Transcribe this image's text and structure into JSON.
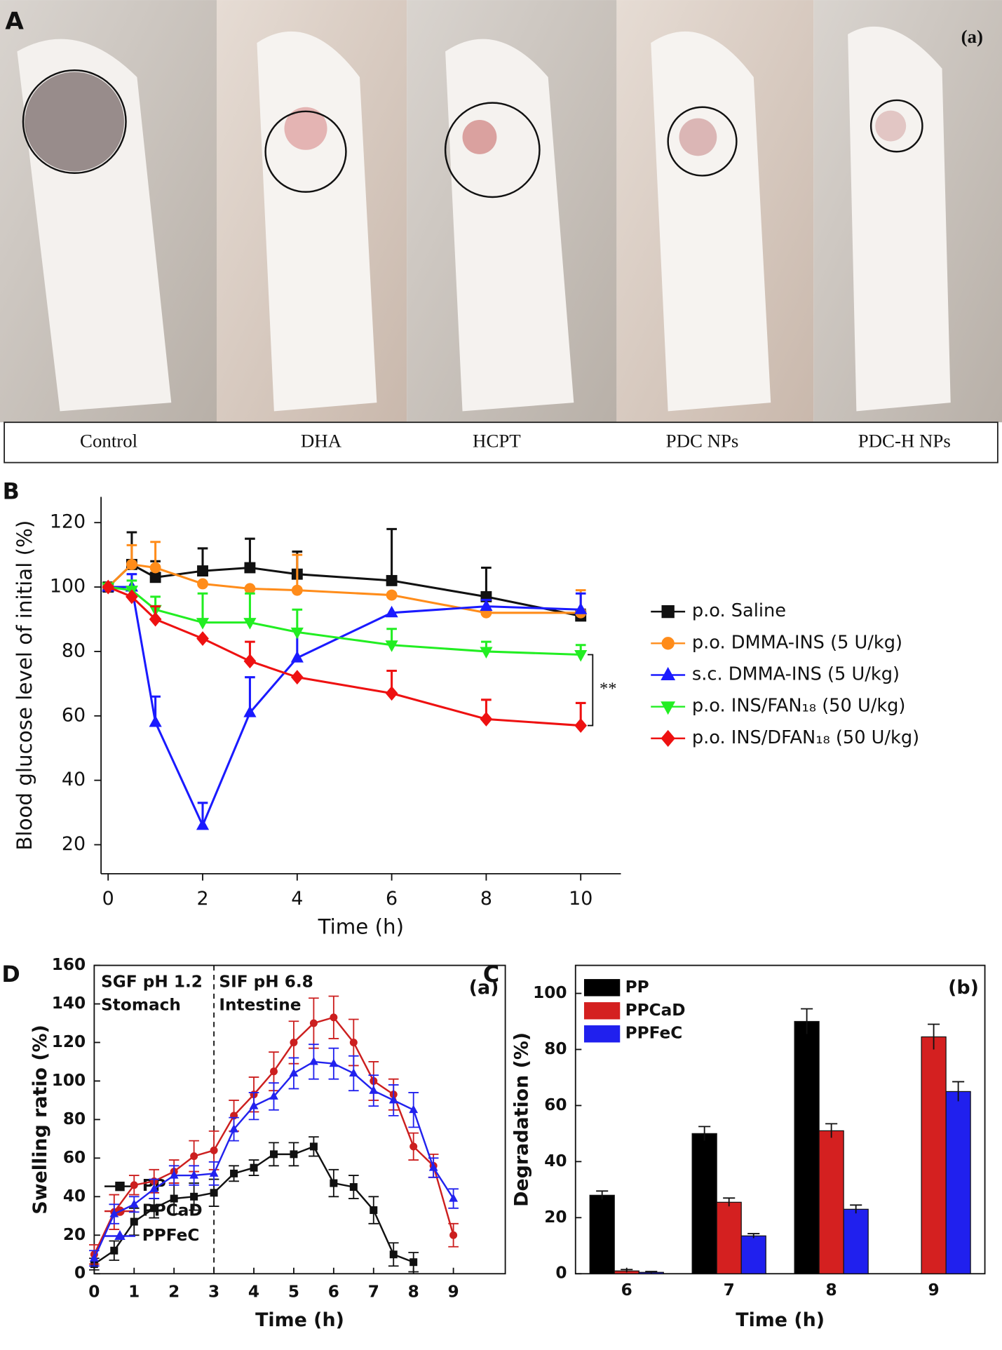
{
  "panel_a": {
    "label": "A",
    "tag": "(a)",
    "captions": [
      "Control",
      "DHA",
      "HCPT",
      "PDC NPs",
      "PDC-H NPs"
    ]
  },
  "chart_data": [
    {
      "type": "line",
      "panel_label": "B",
      "x_label": "Time (h)",
      "y_label": "Blood glucose level of initial (%)",
      "x": [
        0,
        0.5,
        1,
        2,
        3,
        4,
        6,
        8,
        10
      ],
      "xlim": [
        -0.15,
        10.85
      ],
      "xticks": [
        0,
        2,
        4,
        6,
        8,
        10
      ],
      "ylim": [
        11,
        128
      ],
      "yticks": [
        20,
        40,
        60,
        80,
        100,
        120
      ],
      "annotation": "**",
      "series": [
        {
          "name": "p.o. Saline",
          "color": "#111111",
          "marker": "square",
          "values": [
            100,
            107,
            103,
            105,
            106,
            104,
            102,
            97,
            91
          ],
          "errors": [
            0,
            10,
            5,
            7,
            9,
            7,
            16,
            9,
            2
          ]
        },
        {
          "name": "p.o. DMMA-INS (5 U/kg)",
          "color": "#ff8c1a",
          "marker": "circle",
          "values": [
            100,
            107,
            106,
            101,
            99.5,
            99,
            97.5,
            92,
            92
          ],
          "errors": [
            0,
            6,
            8,
            0,
            0,
            11,
            0,
            0,
            7
          ]
        },
        {
          "name": "s.c. DMMA-INS (5 U/kg)",
          "color": "#1a1aff",
          "marker": "triangle-up",
          "values": [
            100,
            100,
            58,
            26,
            61,
            78,
            92,
            94,
            93
          ],
          "errors": [
            0,
            4,
            8,
            7,
            11,
            9,
            0,
            2,
            5
          ]
        },
        {
          "name": "p.o. INS/FAN₁₈ (50 U/kg)",
          "color": "#22ee22",
          "marker": "triangle-down",
          "values": [
            100,
            99,
            93,
            89,
            89,
            86,
            82,
            80,
            79
          ],
          "errors": [
            0,
            3,
            4,
            9,
            9,
            7,
            5,
            3,
            3
          ]
        },
        {
          "name": "p.o. INS/DFAN₁₈ (50 U/kg)",
          "color": "#ee1111",
          "marker": "diamond",
          "values": [
            100,
            97,
            90,
            84,
            77,
            72,
            67,
            59,
            57
          ],
          "errors": [
            0,
            0,
            4,
            0,
            6,
            0,
            7,
            6,
            7
          ]
        }
      ]
    },
    {
      "type": "line",
      "panel_label": "D",
      "tag": "(a)",
      "x_label": "Time (h)",
      "y_label": "Swelling ratio (%)",
      "annotations": [
        "SGF pH 1.2",
        "Stomach",
        "SIF pH 6.8",
        "Intestine"
      ],
      "vline": 3,
      "x": [
        0,
        0.5,
        1,
        1.5,
        2,
        2.5,
        3,
        3.5,
        4,
        4.5,
        5,
        5.5,
        6,
        6.5,
        7,
        7.5,
        8,
        8.5,
        9
      ],
      "xlim": [
        0,
        10.3
      ],
      "xticks": [
        0,
        1,
        2,
        3,
        4,
        5,
        6,
        7,
        8,
        9
      ],
      "ylim": [
        0,
        160
      ],
      "yticks": [
        0,
        20,
        40,
        60,
        80,
        100,
        120,
        140,
        160
      ],
      "series": [
        {
          "name": "PP",
          "color": "#111111",
          "marker": "square",
          "values": [
            5,
            12,
            27,
            34,
            39,
            40,
            42,
            52,
            55,
            62,
            62,
            66,
            47,
            45,
            33,
            10,
            6,
            null,
            null
          ],
          "errors": [
            3,
            5,
            7,
            5,
            8,
            7,
            7,
            4,
            4,
            6,
            6,
            5,
            7,
            6,
            7,
            6,
            5,
            null,
            null
          ]
        },
        {
          "name": "PPCaD",
          "color": "#cc1f1f",
          "marker": "circle",
          "values": [
            10,
            32,
            46,
            48,
            53,
            61,
            64,
            82,
            93,
            105,
            120,
            130,
            133,
            120,
            100,
            93,
            66,
            56,
            20
          ],
          "errors": [
            5,
            9,
            5,
            6,
            6,
            8,
            10,
            8,
            9,
            10,
            11,
            13,
            11,
            12,
            10,
            8,
            7,
            6,
            6
          ]
        },
        {
          "name": "PPFeC",
          "color": "#2222ee",
          "marker": "triangle-up",
          "values": [
            8,
            31,
            36,
            44,
            51,
            51,
            52,
            75,
            87,
            92,
            104,
            110,
            109,
            104,
            95,
            90,
            85,
            55,
            39
          ],
          "errors": [
            4,
            5,
            4,
            5,
            5,
            5,
            6,
            6,
            7,
            7,
            8,
            9,
            8,
            9,
            8,
            8,
            9,
            5,
            5
          ]
        }
      ]
    },
    {
      "type": "bar",
      "panel_label": "C",
      "tag": "(b)",
      "x_label": "Time (h)",
      "y_label": "Degradation (%)",
      "categories": [
        "6",
        "7",
        "8",
        "9"
      ],
      "ylim": [
        0,
        110
      ],
      "yticks": [
        0,
        20,
        40,
        60,
        80,
        100
      ],
      "series": [
        {
          "name": "PP",
          "color": "#000000",
          "values": [
            28,
            50,
            90,
            null
          ],
          "errors": [
            1.5,
            2.5,
            4.5,
            null
          ]
        },
        {
          "name": "PPCaD",
          "color": "#d42020",
          "values": [
            1,
            25.5,
            51,
            84.5
          ],
          "errors": [
            0.5,
            1.5,
            2.5,
            4.5
          ]
        },
        {
          "name": "PPFeC",
          "color": "#2020ee",
          "values": [
            0.5,
            13.5,
            23,
            65
          ],
          "errors": [
            0.3,
            0.8,
            1.5,
            3.5
          ]
        }
      ]
    }
  ]
}
